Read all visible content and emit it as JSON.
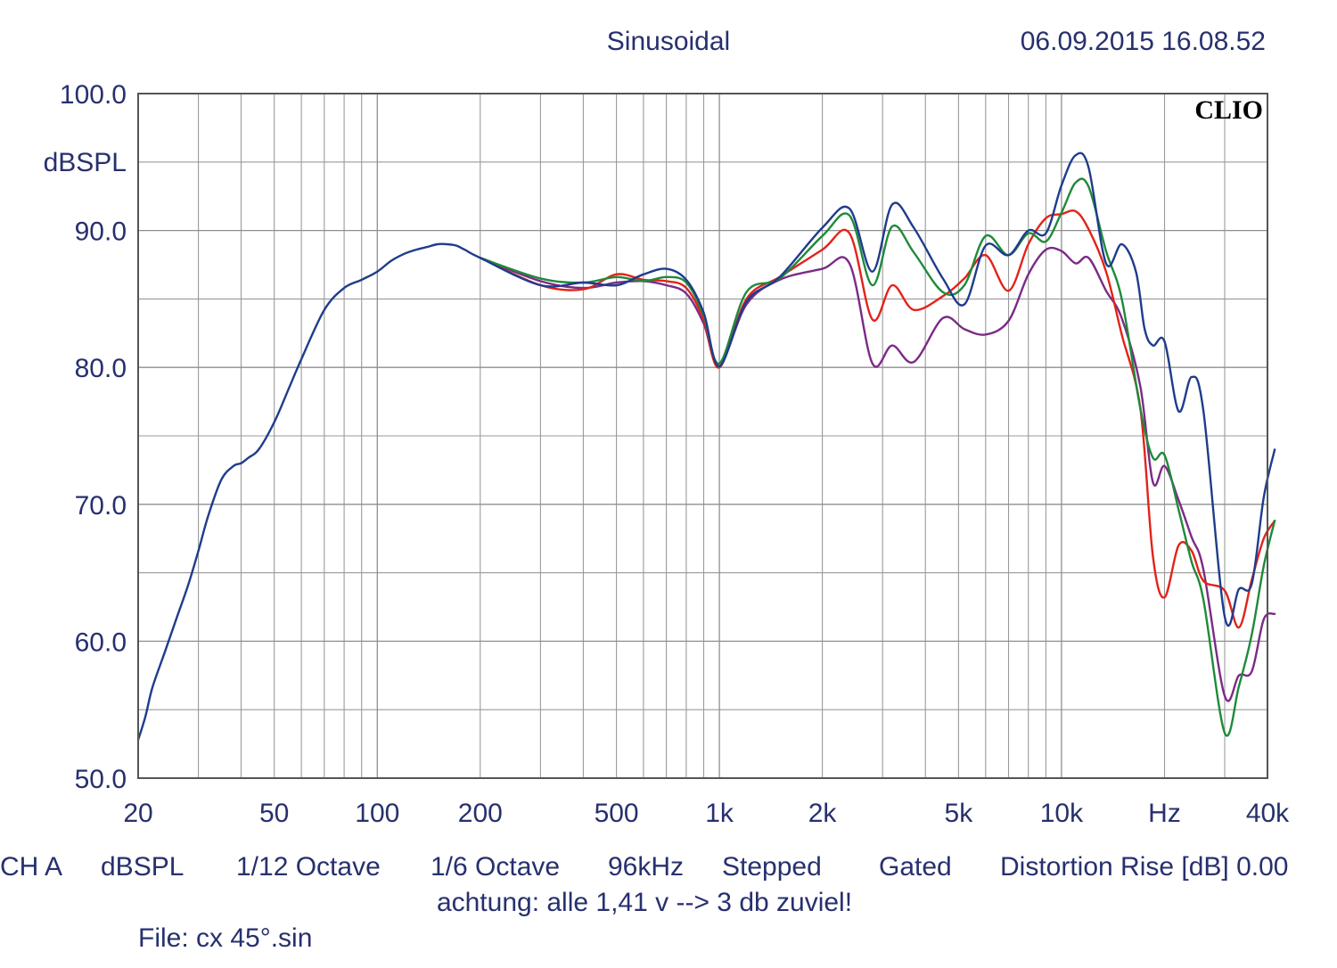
{
  "header": {
    "title": "Sinusoidal",
    "timestamp": "06.09.2015 16.08.52",
    "logo": "CLIO"
  },
  "footer": {
    "settings": [
      "CH A",
      "dBSPL",
      "1/12 Octave",
      "1/6 Octave",
      "96kHz",
      "Stepped",
      "Gated",
      "Distortion Rise [dB] 0.00"
    ],
    "note": "achtung: alle 1,41 v --> 3 db zuviel!",
    "file": "File: cx 45°.sin"
  },
  "chart_data": {
    "type": "line",
    "xscale": "log",
    "xlim": [
      20,
      40000
    ],
    "ylim": [
      50,
      100
    ],
    "ylabel": "dBSPL",
    "grid": true,
    "y_ticks": [
      {
        "value": 100,
        "label": "100.0"
      },
      {
        "value": 90,
        "label": "90.0"
      },
      {
        "value": 80,
        "label": "80.0"
      },
      {
        "value": 70,
        "label": "70.0"
      },
      {
        "value": 60,
        "label": "60.0"
      },
      {
        "value": 50,
        "label": "50.0"
      }
    ],
    "x_ticks": [
      {
        "value": 20,
        "label": "20"
      },
      {
        "value": 50,
        "label": "50"
      },
      {
        "value": 100,
        "label": "100"
      },
      {
        "value": 200,
        "label": "200"
      },
      {
        "value": 500,
        "label": "500"
      },
      {
        "value": 1000,
        "label": "1k"
      },
      {
        "value": 2000,
        "label": "2k"
      },
      {
        "value": 5000,
        "label": "5k"
      },
      {
        "value": 10000,
        "label": "10k"
      },
      {
        "value": 20000,
        "label": "Hz"
      },
      {
        "value": 40000,
        "label": "40k"
      }
    ],
    "series": [
      {
        "color": "#7b2a86",
        "x": [
          200,
          300,
          400,
          500,
          600,
          700,
          800,
          900,
          1000,
          1200,
          1500,
          2000,
          2400,
          2800,
          3200,
          3700,
          4500,
          5200,
          6000,
          7000,
          8000,
          9000,
          10000,
          11000,
          12000,
          13500,
          15000,
          17000,
          18500,
          20000,
          22000,
          24000,
          26000,
          30000,
          33000,
          36000,
          39000,
          42000
        ],
        "y": [
          88.0,
          86.3,
          85.8,
          86.2,
          86.3,
          86.0,
          85.4,
          83.2,
          80.1,
          84.6,
          86.4,
          87.2,
          87.6,
          80.3,
          81.6,
          80.4,
          83.6,
          82.8,
          82.4,
          83.4,
          86.8,
          88.6,
          88.5,
          87.6,
          88.0,
          85.6,
          83.6,
          78.6,
          71.6,
          72.8,
          70.3,
          67.6,
          65.2,
          56.0,
          57.5,
          57.8,
          61.6,
          62.0
        ]
      },
      {
        "color": "#e2231a",
        "x": [
          200,
          300,
          400,
          500,
          600,
          700,
          800,
          900,
          1000,
          1200,
          1500,
          2000,
          2400,
          2800,
          3200,
          3700,
          4500,
          5200,
          6000,
          7000,
          8000,
          9000,
          10000,
          11000,
          12000,
          13500,
          15000,
          17000,
          18500,
          20000,
          22000,
          24000,
          26000,
          30000,
          33000,
          36000,
          39000,
          42000
        ],
        "y": [
          88.0,
          86.0,
          85.7,
          86.8,
          86.4,
          86.3,
          85.8,
          83.5,
          80.0,
          85.0,
          86.6,
          88.6,
          89.8,
          83.5,
          86.0,
          84.2,
          85.2,
          86.5,
          88.2,
          85.6,
          89.0,
          90.9,
          91.2,
          91.4,
          90.1,
          87.0,
          82.4,
          77.0,
          66.2,
          63.2,
          67.0,
          66.6,
          64.4,
          63.7,
          61.0,
          64.5,
          67.5,
          68.8
        ]
      },
      {
        "color": "#1f8a3a",
        "x": [
          200,
          300,
          400,
          500,
          600,
          700,
          800,
          900,
          1000,
          1200,
          1500,
          2000,
          2400,
          2800,
          3200,
          3700,
          4500,
          5200,
          6000,
          7000,
          8000,
          9000,
          10000,
          11000,
          12000,
          13500,
          15000,
          17000,
          18500,
          20000,
          22000,
          24000,
          26000,
          30000,
          33000,
          36000,
          39000,
          42000
        ],
        "y": [
          88.0,
          86.5,
          86.2,
          86.6,
          86.3,
          86.6,
          86.2,
          83.8,
          80.3,
          85.5,
          86.5,
          89.6,
          91.1,
          86.0,
          90.3,
          88.4,
          85.5,
          86.0,
          89.6,
          88.2,
          89.8,
          89.2,
          91.3,
          93.5,
          93.2,
          88.5,
          85.0,
          77.0,
          73.4,
          73.6,
          69.6,
          65.8,
          63.0,
          53.3,
          56.7,
          60.5,
          65.5,
          68.8
        ]
      },
      {
        "color": "#1f3c8c",
        "x": [
          20,
          21,
          22,
          24,
          26,
          28,
          30,
          32,
          35,
          38,
          40,
          42,
          45,
          50,
          55,
          60,
          70,
          80,
          90,
          100,
          110,
          120,
          130,
          140,
          150,
          160,
          170,
          180,
          200,
          300,
          400,
          500,
          600,
          700,
          800,
          900,
          1000,
          1200,
          1500,
          2000,
          2400,
          2800,
          3200,
          3700,
          4500,
          5200,
          6000,
          7000,
          8000,
          9000,
          10000,
          11000,
          12000,
          13500,
          15000,
          16500,
          17500,
          18500,
          20000,
          22000,
          24000,
          26000,
          30000,
          33000,
          36000,
          39000,
          42000
        ],
        "y": [
          52.8,
          54.5,
          56.6,
          59.3,
          61.8,
          64.1,
          66.6,
          69.1,
          71.8,
          72.8,
          73.0,
          73.4,
          74.0,
          76.0,
          78.4,
          80.6,
          84.2,
          85.8,
          86.4,
          87.0,
          87.8,
          88.3,
          88.6,
          88.8,
          89.0,
          89.0,
          88.9,
          88.6,
          88.0,
          86.0,
          86.2,
          86.0,
          86.8,
          87.2,
          86.4,
          84.0,
          80.1,
          84.8,
          86.6,
          90.2,
          91.6,
          87.0,
          91.9,
          90.2,
          86.5,
          84.6,
          88.9,
          88.2,
          90.0,
          89.8,
          93.3,
          95.5,
          94.6,
          87.6,
          89.0,
          87.0,
          82.8,
          81.6,
          81.9,
          76.8,
          79.3,
          76.8,
          61.8,
          63.8,
          64.2,
          70.5,
          74.0
        ]
      }
    ]
  }
}
